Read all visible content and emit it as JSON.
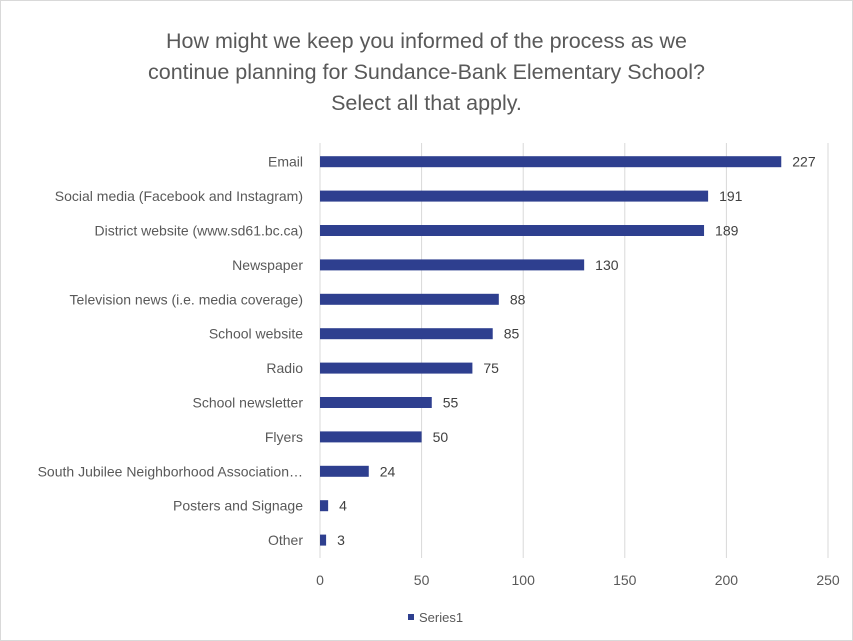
{
  "chart_data": {
    "type": "bar",
    "orientation": "horizontal",
    "title_lines": [
      "How might we keep you informed of the process as we",
      "continue planning for Sundance-Bank Elementary School?",
      "Select all that apply."
    ],
    "categories": [
      "Email",
      "Social media (Facebook and Instagram)",
      "District website (www.sd61.bc.ca)",
      "Newspaper",
      "Television news (i.e. media coverage)",
      "School website",
      "Radio",
      "School newsletter",
      "Flyers",
      "South Jubilee Neighborhood Association…",
      "Posters and Signage",
      "Other"
    ],
    "series": [
      {
        "name": "Series1",
        "values": [
          227,
          191,
          189,
          130,
          88,
          85,
          75,
          55,
          50,
          24,
          4,
          3
        ],
        "color": "#2e3f8f"
      }
    ],
    "xlim": [
      0,
      250
    ],
    "xticks": [
      0,
      50,
      100,
      150,
      200,
      250
    ],
    "grid": true,
    "gridline_color": "#d9d9d9",
    "data_labels": true,
    "legend_position": "bottom"
  }
}
